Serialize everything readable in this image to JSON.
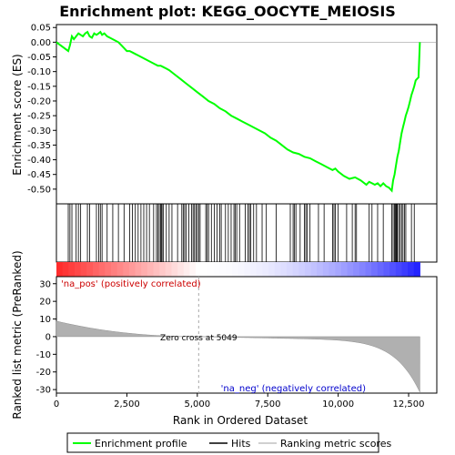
{
  "chart_data": {
    "type": "line",
    "title": "Enrichment plot: KEGG_OOCYTE_MEIOSIS",
    "top_panel": {
      "ylabel": "Enrichment score (ES)",
      "ylim": [
        -0.55,
        0.06
      ],
      "yticks": [
        "0.05",
        "0.00",
        "-0.05",
        "-0.10",
        "-0.15",
        "-0.20",
        "-0.25",
        "-0.30",
        "-0.35",
        "-0.40",
        "-0.45",
        "-0.50"
      ],
      "ytick_values": [
        0.05,
        0.0,
        -0.05,
        -0.1,
        -0.15,
        -0.2,
        -0.25,
        -0.3,
        -0.35,
        -0.4,
        -0.45,
        -0.5
      ],
      "series": [
        {
          "name": "Enrichment profile",
          "color": "#00ff00",
          "x": [
            0,
            420,
            480,
            550,
            620,
            700,
            780,
            860,
            940,
            1020,
            1100,
            1180,
            1260,
            1340,
            1420,
            1500,
            1560,
            1620,
            1700,
            1800,
            1900,
            2000,
            2100,
            2200,
            2300,
            2400,
            2500,
            2600,
            2700,
            2800,
            2900,
            3000,
            3100,
            3200,
            3300,
            3400,
            3500,
            3600,
            3700,
            3800,
            3900,
            4000,
            4200,
            4400,
            4600,
            4800,
            5000,
            5200,
            5400,
            5600,
            5800,
            6000,
            6200,
            6400,
            6600,
            6800,
            7000,
            7200,
            7400,
            7600,
            7800,
            8000,
            8200,
            8400,
            8600,
            8800,
            9000,
            9200,
            9400,
            9600,
            9800,
            9900,
            10000,
            10200,
            10400,
            10600,
            10800,
            11000,
            11100,
            11200,
            11300,
            11400,
            11500,
            11600,
            11700,
            11800,
            11900,
            11950,
            12000,
            12050,
            12100,
            12150,
            12200,
            12250,
            12300,
            12350,
            12400,
            12450,
            12500,
            12550,
            12600,
            12650,
            12700,
            12750,
            12800,
            12850,
            12900
          ],
          "y": [
            0.0,
            -0.03,
            -0.01,
            0.02,
            0.01,
            0.02,
            0.03,
            0.025,
            0.02,
            0.03,
            0.035,
            0.02,
            0.015,
            0.03,
            0.025,
            0.03,
            0.035,
            0.025,
            0.03,
            0.02,
            0.015,
            0.01,
            0.005,
            0.0,
            -0.01,
            -0.02,
            -0.03,
            -0.03,
            -0.035,
            -0.04,
            -0.045,
            -0.05,
            -0.055,
            -0.06,
            -0.065,
            -0.07,
            -0.075,
            -0.08,
            -0.08,
            -0.085,
            -0.09,
            -0.095,
            -0.11,
            -0.125,
            -0.14,
            -0.155,
            -0.17,
            -0.185,
            -0.2,
            -0.21,
            -0.225,
            -0.235,
            -0.25,
            -0.26,
            -0.27,
            -0.28,
            -0.29,
            -0.3,
            -0.31,
            -0.325,
            -0.335,
            -0.35,
            -0.365,
            -0.375,
            -0.38,
            -0.39,
            -0.395,
            -0.405,
            -0.415,
            -0.425,
            -0.435,
            -0.43,
            -0.44,
            -0.455,
            -0.465,
            -0.46,
            -0.47,
            -0.485,
            -0.475,
            -0.48,
            -0.485,
            -0.48,
            -0.49,
            -0.48,
            -0.49,
            -0.495,
            -0.505,
            -0.47,
            -0.45,
            -0.42,
            -0.39,
            -0.37,
            -0.34,
            -0.31,
            -0.29,
            -0.27,
            -0.25,
            -0.235,
            -0.22,
            -0.2,
            -0.18,
            -0.165,
            -0.15,
            -0.13,
            -0.125,
            -0.12,
            0.0
          ]
        }
      ]
    },
    "hits_panel": {
      "hit_positions": [
        420,
        480,
        550,
        700,
        780,
        860,
        1100,
        1180,
        1420,
        1500,
        1560,
        1620,
        1800,
        2000,
        2200,
        2400,
        2600,
        2700,
        2800,
        2900,
        3000,
        3100,
        3200,
        3300,
        3450,
        3550,
        3600,
        3650,
        3700,
        3720,
        3750,
        3800,
        3900,
        4000,
        4100,
        4300,
        4450,
        4500,
        4550,
        4600,
        4700,
        4800,
        4850,
        4900,
        4950,
        5000,
        5050,
        5100,
        5300,
        5350,
        5400,
        5500,
        5600,
        5700,
        5800,
        5850,
        6000,
        6100,
        6200,
        6300,
        6350,
        6400,
        6500,
        6700,
        6800,
        6850,
        6900,
        7000,
        7100,
        7300,
        7450,
        7800,
        8300,
        8400,
        8450,
        8500,
        8650,
        8800,
        8850,
        8900,
        9000,
        9300,
        9500,
        9800,
        9850,
        9900,
        10000,
        10300,
        10500,
        10600,
        10650,
        11100,
        11200,
        11400,
        11600,
        11900,
        11950,
        12000,
        12020,
        12050,
        12080,
        12100,
        12150,
        12200,
        12250,
        12300,
        12350,
        12400,
        12600,
        12700
      ]
    },
    "bottom_panel": {
      "ylabel": "Ranked list metric (PreRanked)",
      "xlabel": "Rank in Ordered Dataset",
      "xlim": [
        0,
        13500
      ],
      "ylim": [
        -32,
        34
      ],
      "xticks": [
        "0",
        "2,500",
        "5,000",
        "7,500",
        "10,000",
        "12,500"
      ],
      "xtick_values": [
        0,
        2500,
        5000,
        7500,
        10000,
        12500
      ],
      "yticks": [
        "30",
        "20",
        "10",
        "0",
        "-10",
        "-20",
        "-30"
      ],
      "ytick_values": [
        30,
        20,
        10,
        0,
        -10,
        -20,
        -30
      ],
      "metric_start": 8.5,
      "metric_end": -29,
      "n_ranks": 12900,
      "zero_cross_rank": 5049,
      "zero_cross_label": "Zero cross at 5049",
      "pos_label": "'na_pos' (positively correlated)",
      "neg_label": "'na_neg' (negatively correlated)"
    },
    "legend": {
      "items": [
        "Enrichment profile",
        "Hits",
        "Ranking metric scores"
      ],
      "colors": [
        "#00ff00",
        "#000000",
        "#c0c0c0"
      ]
    }
  }
}
